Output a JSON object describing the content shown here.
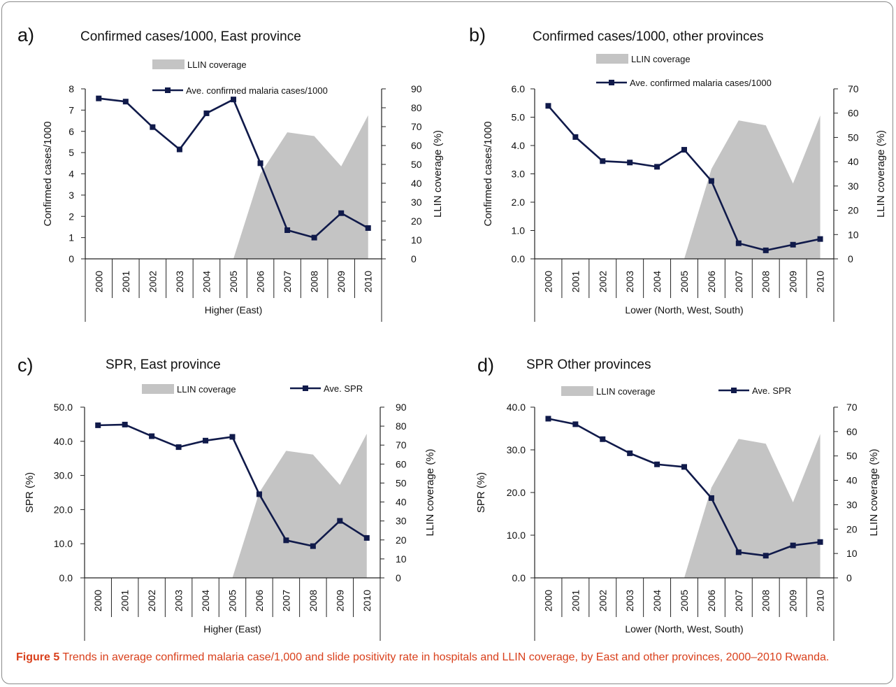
{
  "caption": {
    "label": "Figure 5",
    "text": "Trends in average confirmed malaria case/1,000 and slide positivity rate in hospitals and LLIN coverage, by East and other provinces, 2000–2010 Rwanda."
  },
  "colors": {
    "area": "#c4c4c4",
    "area_light": "#dcdcdc",
    "line": "#101a4a",
    "caption": "#d9401c"
  },
  "chart_data": [
    {
      "panel": "a)",
      "title": "Confirmed  cases/1000, East province",
      "type": "line",
      "categories": [
        "2000",
        "2001",
        "2002",
        "2003",
        "2004",
        "2005",
        "2006",
        "2007",
        "2008",
        "2009",
        "2010"
      ],
      "xlabel": "Higher (East)",
      "ylabel_left": "Confirmed cases/1000",
      "ylabel_right": "LLIN coverage (%)",
      "left_ticks": [
        "0",
        "1",
        "2",
        "3",
        "4",
        "5",
        "6",
        "7",
        "8"
      ],
      "ylim_left": [
        0,
        8
      ],
      "right_ticks": [
        "0",
        "10",
        "20",
        "30",
        "40",
        "50",
        "60",
        "70",
        "80",
        "90"
      ],
      "ylim_right": [
        0,
        90
      ],
      "series": [
        {
          "name": "LLIN coverage",
          "axis": "right",
          "kind": "area",
          "values": [
            null,
            null,
            null,
            null,
            null,
            0,
            45,
            67,
            65,
            49,
            76
          ]
        },
        {
          "name": "Ave. confirmed malaria cases/1000",
          "axis": "left",
          "kind": "line",
          "values": [
            7.55,
            7.4,
            6.2,
            5.15,
            6.85,
            7.5,
            4.5,
            1.35,
            1.0,
            2.15,
            1.45
          ]
        }
      ]
    },
    {
      "panel": "b)",
      "title": "Confirmed  cases/1000, other provinces",
      "type": "line",
      "categories": [
        "2000",
        "2001",
        "2002",
        "2003",
        "2004",
        "2005",
        "2006",
        "2007",
        "2008",
        "2009",
        "2010"
      ],
      "xlabel": "Lower (North, West, South)",
      "ylabel_left": "Confirmed cases/1000",
      "ylabel_right": "LLIN coverage (%)",
      "left_ticks": [
        "0.0",
        "1.0",
        "2.0",
        "3.0",
        "4.0",
        "5.0",
        "6.0"
      ],
      "ylim_left": [
        0,
        6
      ],
      "right_ticks": [
        "0",
        "10",
        "20",
        "30",
        "40",
        "50",
        "60",
        "70"
      ],
      "ylim_right": [
        0,
        70
      ],
      "series": [
        {
          "name": "LLIN coverage",
          "axis": "right",
          "kind": "area",
          "values": [
            null,
            null,
            null,
            null,
            null,
            0,
            37,
            57,
            55,
            31,
            59
          ]
        },
        {
          "name": "Ave. confirmed malaria cases/1000",
          "axis": "left",
          "kind": "line",
          "values": [
            5.4,
            4.3,
            3.45,
            3.4,
            3.25,
            3.85,
            2.75,
            0.55,
            0.3,
            0.5,
            0.7
          ]
        }
      ]
    },
    {
      "panel": "c)",
      "title": "SPR, East province",
      "type": "line",
      "categories": [
        "2000",
        "2001",
        "2002",
        "2003",
        "2004",
        "2005",
        "2006",
        "2007",
        "2008",
        "2009",
        "2010"
      ],
      "xlabel": "Higher (East)",
      "ylabel_left": "SPR (%)",
      "ylabel_right": "LLIN coverage (%)",
      "left_ticks": [
        "0.0",
        "10.0",
        "20.0",
        "30.0",
        "40.0",
        "50.0"
      ],
      "ylim_left": [
        0,
        50
      ],
      "right_ticks": [
        "0",
        "10",
        "20",
        "30",
        "40",
        "50",
        "60",
        "70",
        "80",
        "90"
      ],
      "ylim_right": [
        0,
        90
      ],
      "series": [
        {
          "name": "LLIN coverage",
          "axis": "right",
          "kind": "area",
          "values": [
            null,
            null,
            null,
            null,
            null,
            0,
            45,
            67,
            65,
            49,
            76
          ]
        },
        {
          "name": "Ave. SPR",
          "axis": "left",
          "kind": "line",
          "values": [
            44.7,
            44.9,
            41.5,
            38.3,
            40.2,
            41.3,
            24.5,
            11.0,
            9.3,
            16.7,
            11.7
          ]
        }
      ]
    },
    {
      "panel": "d)",
      "title": "SPR Other provinces",
      "type": "line",
      "categories": [
        "2000",
        "2001",
        "2002",
        "2003",
        "2004",
        "2005",
        "2006",
        "2007",
        "2008",
        "2009",
        "2010"
      ],
      "xlabel": "Lower (North, West, South)",
      "ylabel_left": "SPR (%)",
      "ylabel_right": "LLIN coverage (%)",
      "left_ticks": [
        "0.0",
        "10.0",
        "20.0",
        "30.0",
        "40.0"
      ],
      "ylim_left": [
        0,
        40
      ],
      "right_ticks": [
        "0",
        "10",
        "20",
        "30",
        "40",
        "50",
        "60",
        "70"
      ],
      "ylim_right": [
        0,
        70
      ],
      "series": [
        {
          "name": "LLIN coverage",
          "axis": "right",
          "kind": "area",
          "values": [
            null,
            null,
            null,
            null,
            null,
            0,
            37,
            57,
            55,
            31,
            59
          ]
        },
        {
          "name": "Ave. SPR",
          "axis": "left",
          "kind": "line",
          "values": [
            37.3,
            36.0,
            32.5,
            29.2,
            26.6,
            26.0,
            18.7,
            6.0,
            5.2,
            7.6,
            8.4
          ]
        }
      ]
    }
  ]
}
